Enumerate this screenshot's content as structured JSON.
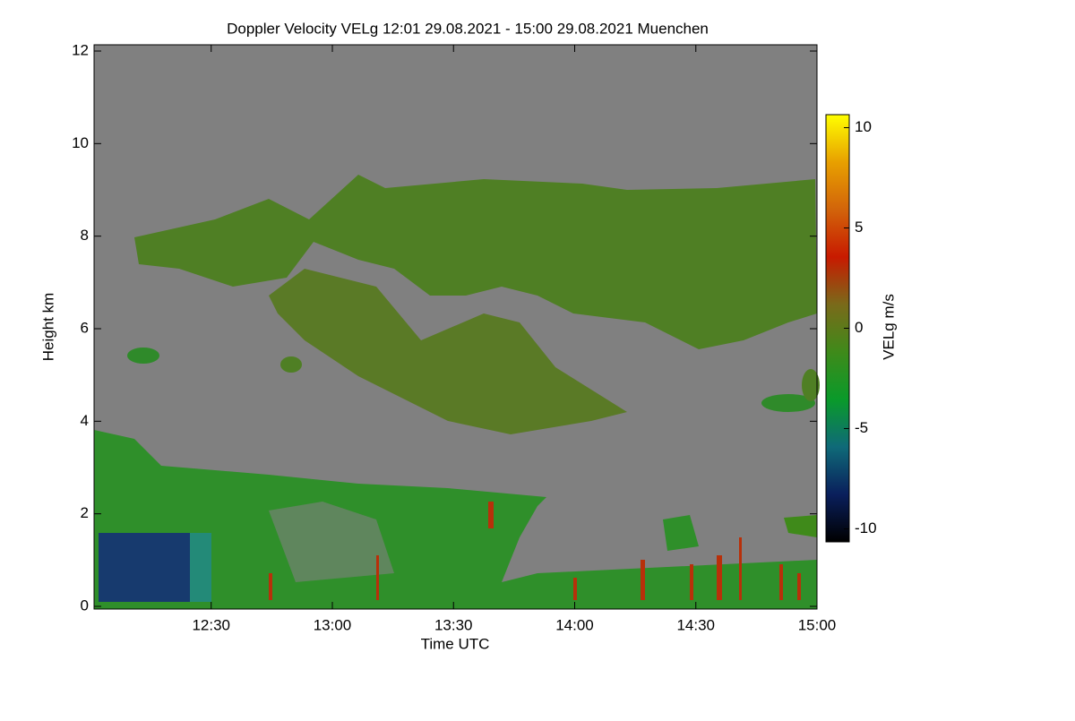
{
  "chart_data": {
    "type": "heatmap",
    "title": "Doppler Velocity VELg   12:01 29.08.2021 - 15:00 29.08.2021 Muenchen",
    "x_label": "Time UTC",
    "y_label": "Height km",
    "colorbar_label": "VELg m/s",
    "xlim": [
      12.0167,
      15.0
    ],
    "xticks": [
      {
        "value": 12.5,
        "label": "12:30"
      },
      {
        "value": 13.0,
        "label": "13:00"
      },
      {
        "value": 13.5,
        "label": "13:30"
      },
      {
        "value": 14.0,
        "label": "14:00"
      },
      {
        "value": 14.5,
        "label": "14:30"
      },
      {
        "value": 15.0,
        "label": "15:00"
      }
    ],
    "ylim": [
      0,
      12
    ],
    "yticks": [
      0,
      2,
      4,
      6,
      8,
      10,
      12
    ],
    "clim": [
      -10.65,
      10.65
    ],
    "cticks": [
      -10,
      -5,
      0,
      5,
      10
    ],
    "colormap": [
      "#000000",
      "#0a1f5c",
      "#0f6a78",
      "#0a9a2a",
      "#3f8a1a",
      "#7a6a1a",
      "#c81a00",
      "#d2640a",
      "#e8a000",
      "#ffff00"
    ],
    "background_color": "#808080"
  }
}
